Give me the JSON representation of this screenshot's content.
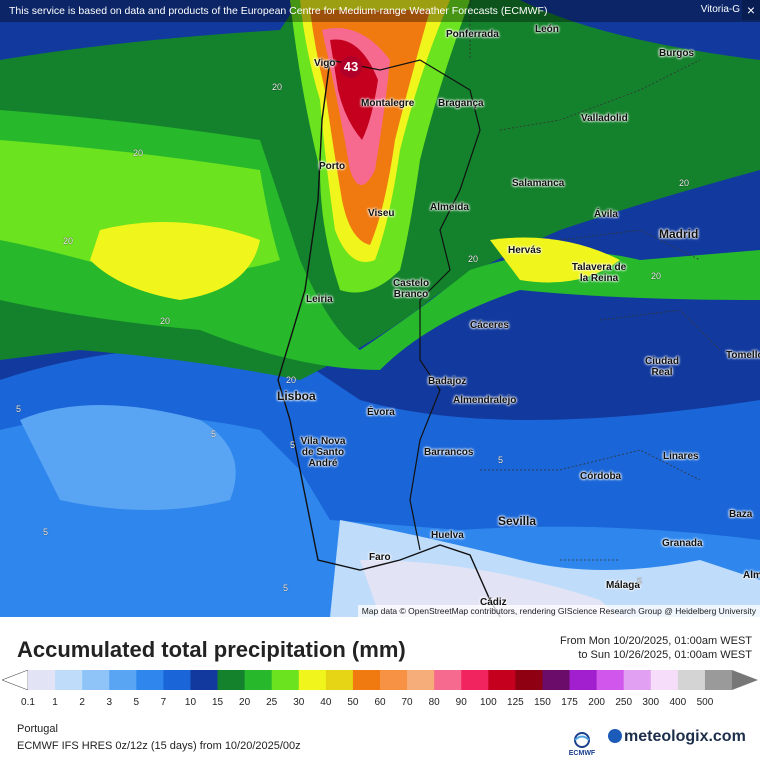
{
  "banner": {
    "text": "This service is based on data and products of the European Centre for Medium-range Weather Forecasts (ECMWF)",
    "corner_place": "Vitoria-G",
    "close_symbol": "×"
  },
  "map": {
    "max_value": "43",
    "attribution": "Map data © OpenStreetMap contributors, rendering GIScience Research Group @ Heidelberg University",
    "cities": {
      "vigo": "Vigo",
      "ponferrada": "Ponferrada",
      "leon": "León",
      "burgos": "Burgos",
      "montalegre": "Montalegre",
      "braganca": "Bragança",
      "valladolid": "Valladolid",
      "porto": "Porto",
      "salamanca": "Salamanca",
      "viseu": "Viseu",
      "almeida": "Almeida",
      "avila": "Ávila",
      "madrid": "Madrid",
      "hervas": "Hervás",
      "talavera": "Talavera de la Reina",
      "castelo_branco": "Castelo Branco",
      "leiria": "Leiria",
      "caceres": "Cáceres",
      "ciudad_real": "Ciudad Real",
      "tomelloso": "Tomelloso",
      "badajoz": "Badajoz",
      "almendralejo": "Almendralejo",
      "lisboa": "Lisboa",
      "evora": "Évora",
      "vila_nova": "Vila Nova de Santo André",
      "barrancos": "Barrancos",
      "linares": "Linares",
      "cordoba": "Córdoba",
      "baza": "Baza",
      "sevilla": "Sevilla",
      "granada": "Granada",
      "huelva": "Huelva",
      "faro": "Faro",
      "malaga": "Málaga",
      "cadiz": "Cádiz",
      "almeria": "Alm"
    },
    "contour_labels": [
      "20",
      "20",
      "20",
      "20",
      "20",
      "20",
      "20",
      "20",
      "5",
      "5",
      "5",
      "5",
      "5",
      "5",
      "5"
    ]
  },
  "legend": {
    "title": "Accumulated total precipitation (mm)",
    "from": "From Mon 10/20/2025, 01:00am WEST",
    "to": "to Sun 10/26/2025, 01:00am WEST",
    "ticks": [
      "0.1",
      "1",
      "2",
      "3",
      "5",
      "7",
      "10",
      "15",
      "20",
      "25",
      "30",
      "40",
      "50",
      "60",
      "70",
      "80",
      "90",
      "100",
      "125",
      "150",
      "175",
      "200",
      "250",
      "300",
      "400",
      "500"
    ],
    "colors": [
      "#e3e3f6",
      "#bfdcfa",
      "#8fc4f8",
      "#5aa5f3",
      "#2f87ee",
      "#1a66d8",
      "#123a9e",
      "#14822c",
      "#27b82b",
      "#6be31f",
      "#f0f51c",
      "#e6d514",
      "#f07a0f",
      "#f79245",
      "#f7ad7a",
      "#f76a8f",
      "#f2245f",
      "#c4001e",
      "#8e0012",
      "#6b0c6b",
      "#a21fcf",
      "#d157ec",
      "#e2a0f2",
      "#f6ddf9",
      "#d4d4d4",
      "#9a9a9a"
    ],
    "region": "Portugal",
    "model": "ECMWF IFS HRES 0z/12z (15 days) from 10/20/2025/00z",
    "ecmwf_label": "ECMWF",
    "brand": "meteologix.com"
  }
}
